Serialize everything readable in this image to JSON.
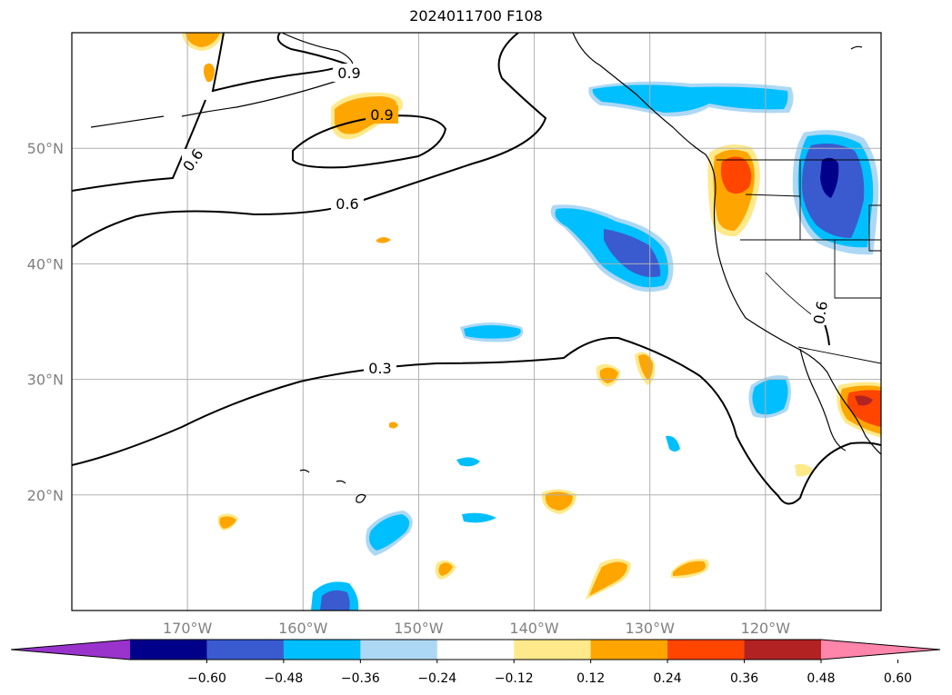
{
  "title": "2024011700 F108",
  "map": {
    "lon_range": [
      -180,
      -110
    ],
    "lat_range": [
      10,
      60
    ],
    "lon_ticks": [
      {
        "lon": -170,
        "label": "170°W"
      },
      {
        "lon": -160,
        "label": "160°W"
      },
      {
        "lon": -150,
        "label": "150°W"
      },
      {
        "lon": -140,
        "label": "140°W"
      },
      {
        "lon": -130,
        "label": "130°W"
      },
      {
        "lon": -120,
        "label": "120°W"
      }
    ],
    "lat_ticks": [
      {
        "lat": 50,
        "label": "50°N"
      },
      {
        "lat": 40,
        "label": "40°N"
      },
      {
        "lat": 30,
        "label": "30°N"
      },
      {
        "lat": 20,
        "label": "20°N"
      }
    ],
    "grid": true,
    "contour_labels": [
      "0.9",
      "0.9",
      "0.6",
      "0.6",
      "0.6",
      "0.3"
    ]
  },
  "colorbar": {
    "ticks": [
      "−0.60",
      "−0.48",
      "−0.36",
      "−0.24",
      "−0.12",
      "0.12",
      "0.24",
      "0.36",
      "0.48",
      "0.60"
    ],
    "colors": [
      "#9933cc",
      "#00008b",
      "#3a5bd0",
      "#00bfff",
      "#add8f5",
      "#ffffff",
      "#ffe98a",
      "#ffa500",
      "#ff4500",
      "#b22222",
      "#ff85ab"
    ],
    "extend": "both"
  },
  "colors": {
    "neg_strong": "#00008b",
    "neg_mid": "#3a5bd0",
    "neg_light": "#00bfff",
    "neg_faint": "#add8f5",
    "pos_faint": "#ffe98a",
    "pos_light": "#ffa500",
    "pos_mid": "#ff4500",
    "pos_strong": "#b22222",
    "grid": "#b0b0b0"
  }
}
